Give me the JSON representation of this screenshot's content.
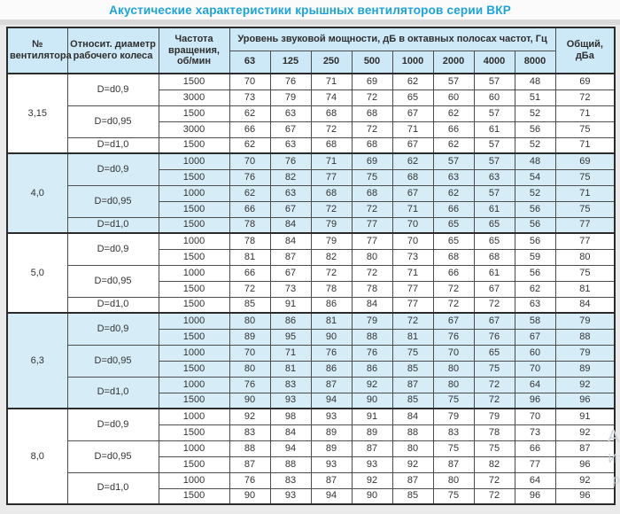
{
  "title": "Акустические характеристики крышных вентиляторов серии ВКР",
  "colors": {
    "title_accent": "#1ba4dc",
    "header_bg": "#cde8f6",
    "shaded_row_bg": "#d6edf8",
    "border_dark": "#2b2b2b",
    "page_bg": "#eaeaea"
  },
  "watermark": {
    "fragments": [
      "Ак",
      "Ит",
      "ра"
    ]
  },
  "table": {
    "headers": {
      "col_fan": "№ вентилятора",
      "col_diameter": "Относит. диаметр рабочего колеса",
      "col_speed": "Частота вращения, об/мин",
      "col_span": "Уровень звуковой мощности, дБ в октавных полосах частот, Гц",
      "freqs": [
        "63",
        "125",
        "250",
        "500",
        "1000",
        "2000",
        "4000",
        "8000"
      ],
      "col_total": "Общий, дБа"
    },
    "groups": [
      {
        "fan": "3,15",
        "shaded": false,
        "subgroups": [
          {
            "diameter": "D=d0,9",
            "rows": [
              {
                "speed": "1500",
                "levels": [
                  70,
                  76,
                  71,
                  69,
                  62,
                  57,
                  57,
                  48
                ],
                "total": 69
              },
              {
                "speed": "3000",
                "levels": [
                  73,
                  79,
                  74,
                  72,
                  65,
                  60,
                  60,
                  51
                ],
                "total": 72
              }
            ]
          },
          {
            "diameter": "D=d0,95",
            "rows": [
              {
                "speed": "1500",
                "levels": [
                  62,
                  63,
                  68,
                  68,
                  67,
                  62,
                  57,
                  52
                ],
                "total": 71
              },
              {
                "speed": "3000",
                "levels": [
                  66,
                  67,
                  72,
                  72,
                  71,
                  66,
                  61,
                  56
                ],
                "total": 75
              }
            ]
          },
          {
            "diameter": "D=d1,0",
            "rows": [
              {
                "speed": "1500",
                "levels": [
                  62,
                  63,
                  68,
                  68,
                  67,
                  62,
                  57,
                  52
                ],
                "total": 71
              }
            ]
          }
        ]
      },
      {
        "fan": "4,0",
        "shaded": true,
        "subgroups": [
          {
            "diameter": "D=d0,9",
            "rows": [
              {
                "speed": "1000",
                "levels": [
                  70,
                  76,
                  71,
                  69,
                  62,
                  57,
                  57,
                  48
                ],
                "total": 69
              },
              {
                "speed": "1500",
                "levels": [
                  76,
                  82,
                  77,
                  75,
                  68,
                  63,
                  63,
                  54
                ],
                "total": 75
              }
            ]
          },
          {
            "diameter": "D=d0,95",
            "rows": [
              {
                "speed": "1000",
                "levels": [
                  62,
                  63,
                  68,
                  68,
                  67,
                  62,
                  57,
                  52
                ],
                "total": 71
              },
              {
                "speed": "1500",
                "levels": [
                  66,
                  67,
                  72,
                  72,
                  71,
                  66,
                  61,
                  56
                ],
                "total": 75
              }
            ]
          },
          {
            "diameter": "D=d1,0",
            "rows": [
              {
                "speed": "1500",
                "levels": [
                  78,
                  84,
                  79,
                  77,
                  70,
                  65,
                  65,
                  56
                ],
                "total": 77
              }
            ]
          }
        ]
      },
      {
        "fan": "5,0",
        "shaded": false,
        "subgroups": [
          {
            "diameter": "D=d0,9",
            "rows": [
              {
                "speed": "1000",
                "levels": [
                  78,
                  84,
                  79,
                  77,
                  70,
                  65,
                  65,
                  56
                ],
                "total": 77
              },
              {
                "speed": "1500",
                "levels": [
                  81,
                  87,
                  82,
                  80,
                  73,
                  68,
                  68,
                  59
                ],
                "total": 80
              }
            ]
          },
          {
            "diameter": "D=d0,95",
            "rows": [
              {
                "speed": "1000",
                "levels": [
                  66,
                  67,
                  72,
                  72,
                  71,
                  66,
                  61,
                  56
                ],
                "total": 75
              },
              {
                "speed": "1500",
                "levels": [
                  72,
                  73,
                  78,
                  78,
                  77,
                  72,
                  67,
                  62
                ],
                "total": 81
              }
            ]
          },
          {
            "diameter": "D=d1,0",
            "rows": [
              {
                "speed": "1500",
                "levels": [
                  85,
                  91,
                  86,
                  84,
                  77,
                  72,
                  72,
                  63
                ],
                "total": 84
              }
            ]
          }
        ]
      },
      {
        "fan": "6,3",
        "shaded": true,
        "subgroups": [
          {
            "diameter": "D=d0,9",
            "rows": [
              {
                "speed": "1000",
                "levels": [
                  80,
                  86,
                  81,
                  79,
                  72,
                  67,
                  67,
                  58
                ],
                "total": 79
              },
              {
                "speed": "1500",
                "levels": [
                  89,
                  95,
                  90,
                  88,
                  81,
                  76,
                  76,
                  67
                ],
                "total": 88
              }
            ]
          },
          {
            "diameter": "D=d0,95",
            "rows": [
              {
                "speed": "1000",
                "levels": [
                  70,
                  71,
                  76,
                  76,
                  75,
                  70,
                  65,
                  60
                ],
                "total": 79
              },
              {
                "speed": "1500",
                "levels": [
                  80,
                  81,
                  86,
                  86,
                  85,
                  80,
                  75,
                  70
                ],
                "total": 89
              }
            ]
          },
          {
            "diameter": "D=d1,0",
            "rows": [
              {
                "speed": "1000",
                "levels": [
                  76,
                  83,
                  87,
                  92,
                  87,
                  80,
                  72,
                  64
                ],
                "total": 92
              },
              {
                "speed": "1500",
                "levels": [
                  90,
                  93,
                  94,
                  90,
                  85,
                  75,
                  72,
                  96
                ],
                "total": 96
              }
            ]
          }
        ]
      },
      {
        "fan": "8,0",
        "shaded": false,
        "subgroups": [
          {
            "diameter": "D=d0,9",
            "rows": [
              {
                "speed": "1000",
                "levels": [
                  92,
                  98,
                  93,
                  91,
                  84,
                  79,
                  79,
                  70
                ],
                "total": 91
              },
              {
                "speed": "1500",
                "levels": [
                  83,
                  84,
                  89,
                  89,
                  88,
                  83,
                  78,
                  73
                ],
                "total": 92
              }
            ]
          },
          {
            "diameter": "D=d0,95",
            "rows": [
              {
                "speed": "1000",
                "levels": [
                  88,
                  94,
                  89,
                  87,
                  80,
                  75,
                  75,
                  66
                ],
                "total": 87
              },
              {
                "speed": "1500",
                "levels": [
                  87,
                  88,
                  93,
                  93,
                  92,
                  87,
                  82,
                  77
                ],
                "total": 96
              }
            ]
          },
          {
            "diameter": "D=d1,0",
            "rows": [
              {
                "speed": "1000",
                "levels": [
                  76,
                  83,
                  87,
                  92,
                  87,
                  80,
                  72,
                  64
                ],
                "total": 92
              },
              {
                "speed": "1500",
                "levels": [
                  90,
                  93,
                  94,
                  90,
                  85,
                  75,
                  72,
                  96
                ],
                "total": 96
              }
            ]
          }
        ]
      }
    ]
  }
}
